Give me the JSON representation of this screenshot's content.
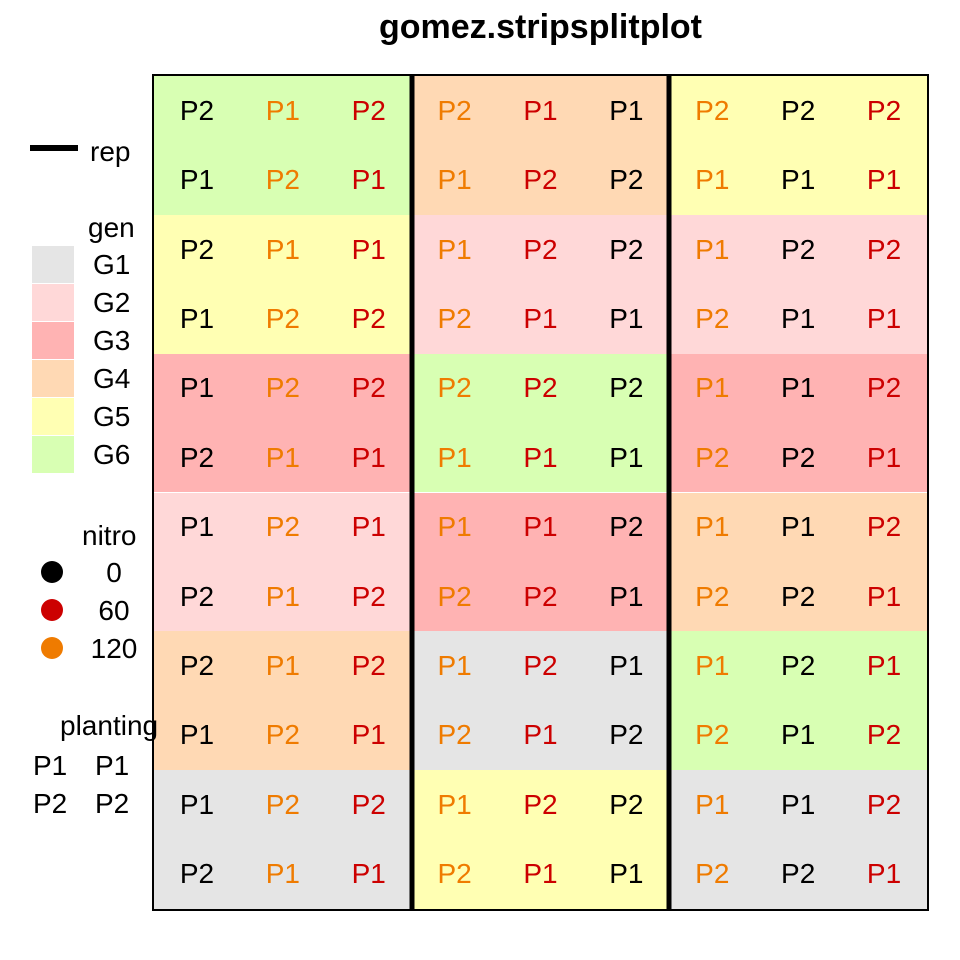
{
  "title": "gomez.stripsplitplot",
  "colors": {
    "G1": "#e5e5e5",
    "G2": "#ffd8d8",
    "G3": "#ffb3b3",
    "G4": "#ffd9b4",
    "G5": "#ffffb3",
    "G6": "#d8ffb3",
    "nitro_0": "#000000",
    "nitro_60": "#cc0000",
    "nitro_120": "#ef7b00",
    "rep_line": "#000000"
  },
  "legend": {
    "rep": {
      "title": "rep"
    },
    "gen": {
      "title": "gen",
      "items": [
        "G1",
        "G2",
        "G3",
        "G4",
        "G5",
        "G6"
      ]
    },
    "nitro": {
      "title": "nitro",
      "items": [
        "0",
        "60",
        "120"
      ]
    },
    "planting": {
      "title": "planting",
      "items": [
        {
          "symbol": "P1",
          "label": "P1"
        },
        {
          "symbol": "P2",
          "label": "P2"
        }
      ]
    }
  },
  "chart_data": {
    "type": "heatmap",
    "title": "gomez.stripsplitplot",
    "n_rows": 12,
    "n_cols": 9,
    "reps": [
      1,
      2,
      3
    ],
    "nitro_col_order": [
      [
        "0",
        "120",
        "60"
      ],
      [
        "120",
        "60",
        "0"
      ],
      [
        "120",
        "0",
        "60"
      ]
    ],
    "gen_blocks": [
      [
        "G6",
        "G4",
        "G5"
      ],
      [
        "G5",
        "G2",
        "G2"
      ],
      [
        "G3",
        "G6",
        "G3"
      ],
      [
        "G2",
        "G3",
        "G4"
      ],
      [
        "G4",
        "G1",
        "G6"
      ],
      [
        "G1",
        "G5",
        "G1"
      ]
    ],
    "planting": [
      [
        "P2",
        "P1",
        "P2",
        "P2",
        "P1",
        "P1",
        "P2",
        "P2",
        "P2"
      ],
      [
        "P1",
        "P2",
        "P1",
        "P1",
        "P2",
        "P2",
        "P1",
        "P1",
        "P1"
      ],
      [
        "P2",
        "P1",
        "P1",
        "P1",
        "P2",
        "P2",
        "P1",
        "P2",
        "P2"
      ],
      [
        "P1",
        "P2",
        "P2",
        "P2",
        "P1",
        "P1",
        "P2",
        "P1",
        "P1"
      ],
      [
        "P1",
        "P2",
        "P2",
        "P2",
        "P2",
        "P2",
        "P1",
        "P1",
        "P2"
      ],
      [
        "P2",
        "P1",
        "P1",
        "P1",
        "P1",
        "P1",
        "P2",
        "P2",
        "P1"
      ],
      [
        "P1",
        "P2",
        "P1",
        "P1",
        "P1",
        "P2",
        "P1",
        "P1",
        "P2"
      ],
      [
        "P2",
        "P1",
        "P2",
        "P2",
        "P2",
        "P1",
        "P2",
        "P2",
        "P1"
      ],
      [
        "P2",
        "P1",
        "P2",
        "P1",
        "P2",
        "P1",
        "P1",
        "P2",
        "P1"
      ],
      [
        "P1",
        "P2",
        "P1",
        "P2",
        "P1",
        "P2",
        "P2",
        "P1",
        "P2"
      ],
      [
        "P1",
        "P2",
        "P2",
        "P1",
        "P2",
        "P2",
        "P1",
        "P1",
        "P2"
      ],
      [
        "P2",
        "P1",
        "P1",
        "P2",
        "P1",
        "P1",
        "P2",
        "P2",
        "P1"
      ]
    ]
  }
}
